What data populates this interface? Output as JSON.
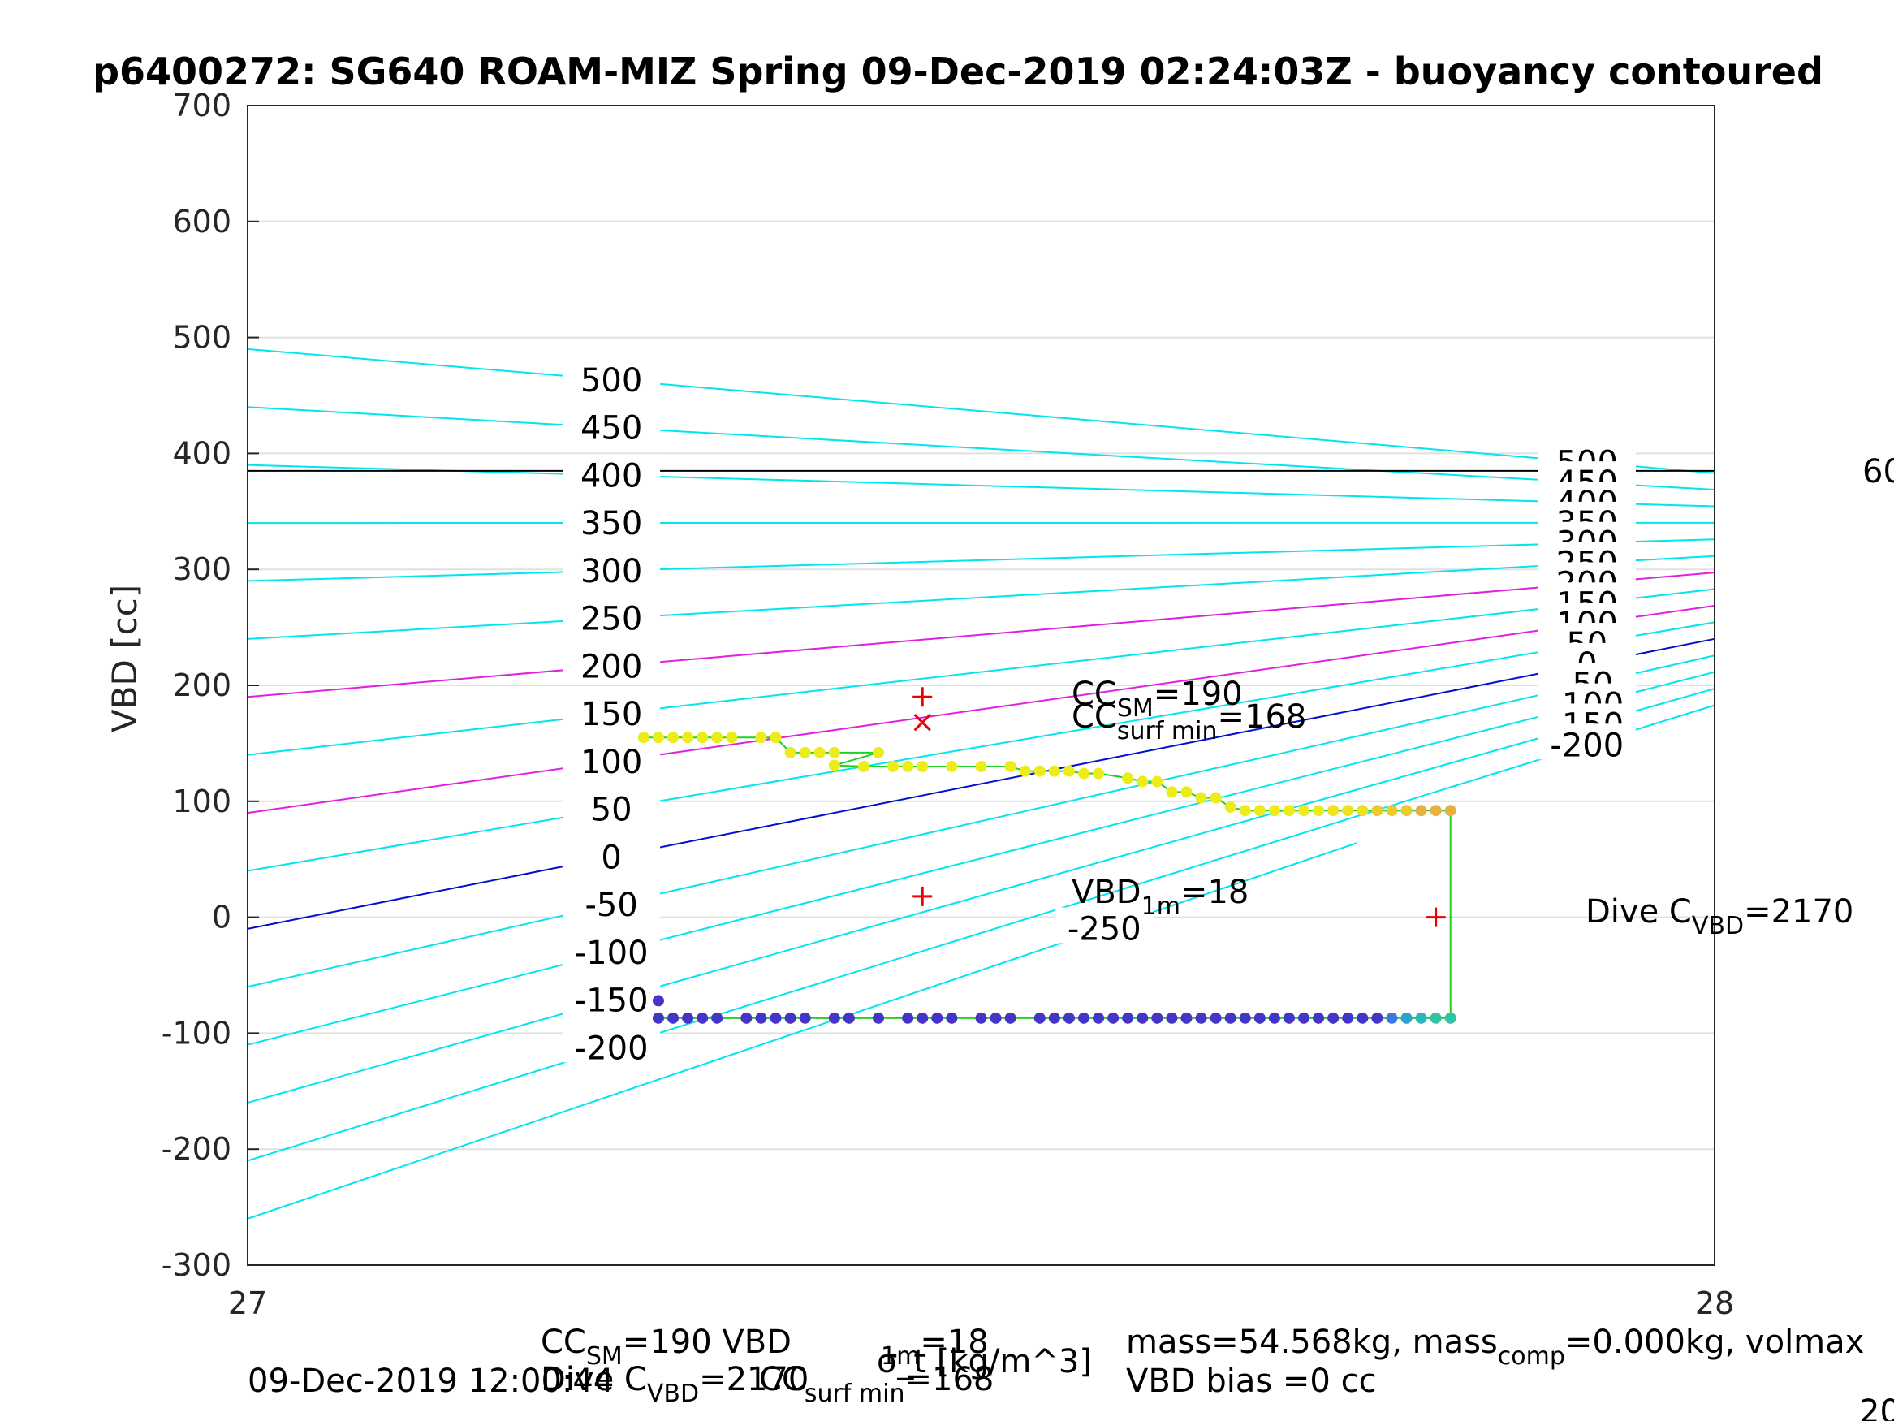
{
  "chart_data": {
    "type": "scatter",
    "title": "p6400272: SG640 ROAM-MIZ Spring 09-Dec-2019 02:24:03Z - buoyancy contoured",
    "xlabel": "σ_t [kg/m^3]",
    "ylabel": "VBD [cc]",
    "xlim": [
      27,
      28
    ],
    "ylim": [
      -300,
      700
    ],
    "xticks": [
      "27",
      "28"
    ],
    "yticks": [
      "-300",
      "-200",
      "-100",
      "0",
      "100",
      "200",
      "300",
      "400",
      "500",
      "600",
      "700"
    ],
    "grid": true,
    "contours": {
      "levels": [
        -250,
        -200,
        -150,
        -100,
        -50,
        0,
        50,
        100,
        150,
        200,
        250,
        300,
        350,
        400,
        450,
        500
      ],
      "left_labels": [
        "500",
        "450",
        "400",
        "350",
        "300",
        "250",
        "200",
        "150",
        "100",
        "50",
        "0",
        "-50",
        "-100",
        "-150",
        "-200"
      ],
      "right_labels": [
        "500",
        "450",
        "400",
        "350",
        "300",
        "250",
        "200",
        "150",
        "100",
        "50",
        "0",
        "-50",
        "-100",
        "-150",
        "-200"
      ],
      "bottom_label": "-250",
      "color": "#00e5ee",
      "highlight_color": "#e020e0",
      "zero_color": "#0010cc"
    },
    "hline": {
      "y": 385,
      "color": "#000000",
      "right_label": "60"
    },
    "markers": [
      {
        "symbol": "+",
        "x": 27.46,
        "y": 190,
        "color": "#ee0000"
      },
      {
        "symbol": "x",
        "x": 27.46,
        "y": 168,
        "color": "#ee0000"
      },
      {
        "symbol": "+",
        "x": 27.46,
        "y": 18,
        "color": "#ee0000"
      },
      {
        "symbol": "+",
        "x": 27.81,
        "y": 0,
        "color": "#ee0000"
      }
    ],
    "series": [
      {
        "name": "",
        "color": "#ecec1a",
        "x": [
          27.27,
          27.28,
          27.29,
          27.3,
          27.31,
          27.32,
          27.33,
          27.35,
          27.36,
          27.37,
          27.38,
          27.39,
          27.4,
          27.43,
          27.4,
          27.42,
          27.44,
          27.45,
          27.46,
          27.48,
          27.5,
          27.52,
          27.53,
          27.54,
          27.55,
          27.56,
          27.57,
          27.58,
          27.6,
          27.61,
          27.62,
          27.63,
          27.64,
          27.65,
          27.66,
          27.67,
          27.68,
          27.69,
          27.7,
          27.71,
          27.72,
          27.73,
          27.74,
          27.75,
          27.76,
          27.77,
          27.78,
          27.79,
          27.8,
          27.81,
          27.82
        ],
        "y": [
          155,
          155,
          155,
          155,
          155,
          155,
          155,
          155,
          155,
          142,
          142,
          142,
          142,
          142,
          131,
          130,
          130,
          130,
          130,
          130,
          130,
          130,
          126,
          126,
          126,
          126,
          124,
          124,
          120,
          117,
          117,
          108,
          108,
          103,
          103,
          95,
          92,
          92,
          92,
          92,
          92,
          92,
          92,
          92,
          92,
          92,
          92,
          92,
          92,
          92,
          92
        ]
      },
      {
        "name": "",
        "color": "#4634c8",
        "x": [
          27.28,
          27.28,
          27.29,
          27.3,
          27.31,
          27.32,
          27.34,
          27.35,
          27.36,
          27.37,
          27.38,
          27.4,
          27.41,
          27.43,
          27.45,
          27.46,
          27.47,
          27.48,
          27.5,
          27.51,
          27.52,
          27.54,
          27.55,
          27.56,
          27.57,
          27.58,
          27.59,
          27.6,
          27.61,
          27.62,
          27.63,
          27.64,
          27.65,
          27.66,
          27.67,
          27.68,
          27.69,
          27.7,
          27.71,
          27.72,
          27.73,
          27.74,
          27.75,
          27.76,
          27.77,
          27.78,
          27.79,
          27.8,
          27.81,
          27.82
        ],
        "y": [
          -72,
          -87,
          -87,
          -87,
          -87,
          -87,
          -87,
          -87,
          -87,
          -87,
          -87,
          -87,
          -87,
          -87,
          -87,
          -87,
          -87,
          -87,
          -87,
          -87,
          -87,
          -87,
          -87,
          -87,
          -87,
          -87,
          -87,
          -87,
          -87,
          -87,
          -87,
          -87,
          -87,
          -87,
          -87,
          -87,
          -87,
          -87,
          -87,
          -87,
          -87,
          -87,
          -87,
          -87,
          -87,
          -87,
          -87,
          -87,
          -87,
          -87
        ]
      }
    ],
    "annotations": {
      "cc_sm": {
        "main": "CC",
        "sub": "SM",
        "value": "=190"
      },
      "cc_surf_min": {
        "main": "CC",
        "sub": "surf min",
        "value": "=168"
      },
      "vbd_1m": {
        "main": "VBD",
        "sub": "1m",
        "value": "=18"
      },
      "dive_c_vbd": {
        "main": "Dive C",
        "sub": "VBD",
        "value": "=2170"
      }
    },
    "footer": {
      "date": "09-Dec-2019 12:00:44",
      "line1_left": "CC",
      "line1_left_sub": "SM",
      "line1_left_val": "=190   VBD",
      "line1_vbd_sub": "1m",
      "line1_vbd_val": "=18",
      "line2_left": "Dive C",
      "line2_left_sub": "VBD",
      "line2_left_val": "=2170",
      "line2_cc": "CC",
      "line2_cc_sub": "surf min",
      "line2_cc_val": "=168",
      "mass_line": "mass=54.568kg, mass",
      "mass_sub": "comp",
      "mass_rest": "=0.000kg, volmax",
      "bias_line": "VBD bias =0 cc",
      "right_cut": "20"
    }
  }
}
